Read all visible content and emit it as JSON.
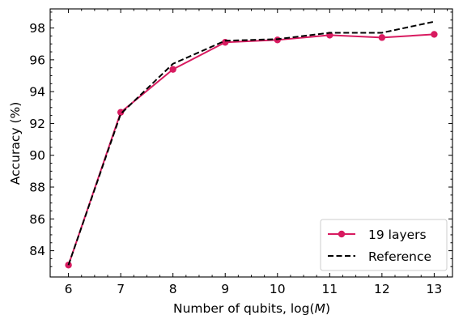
{
  "chart_data": {
    "type": "line",
    "title": "",
    "xlabel_text": "Number of qubits, log(",
    "xlabel_var": "M",
    "xlabel_close": ")",
    "ylabel": "Accuracy (%)",
    "xlim": [
      5.65,
      13.35
    ],
    "ylim": [
      82.35,
      99.2
    ],
    "x_ticks": [
      6,
      7,
      8,
      9,
      10,
      11,
      12,
      13
    ],
    "y_ticks": [
      84,
      86,
      88,
      90,
      92,
      94,
      96,
      98
    ],
    "x": [
      6,
      7,
      8,
      9,
      10,
      11,
      12,
      13
    ],
    "series": [
      {
        "name": "19 layers",
        "values": [
          83.1,
          92.7,
          95.4,
          97.1,
          97.25,
          97.55,
          97.4,
          97.6
        ],
        "color": "#d81b60",
        "style": "solid",
        "marker": "circle"
      },
      {
        "name": "Reference",
        "values": [
          83.1,
          92.6,
          95.75,
          97.2,
          97.3,
          97.7,
          97.7,
          98.4
        ],
        "color": "#000000",
        "style": "dashed",
        "marker": "none"
      }
    ],
    "grid": false,
    "legend_position": "lower-right"
  }
}
